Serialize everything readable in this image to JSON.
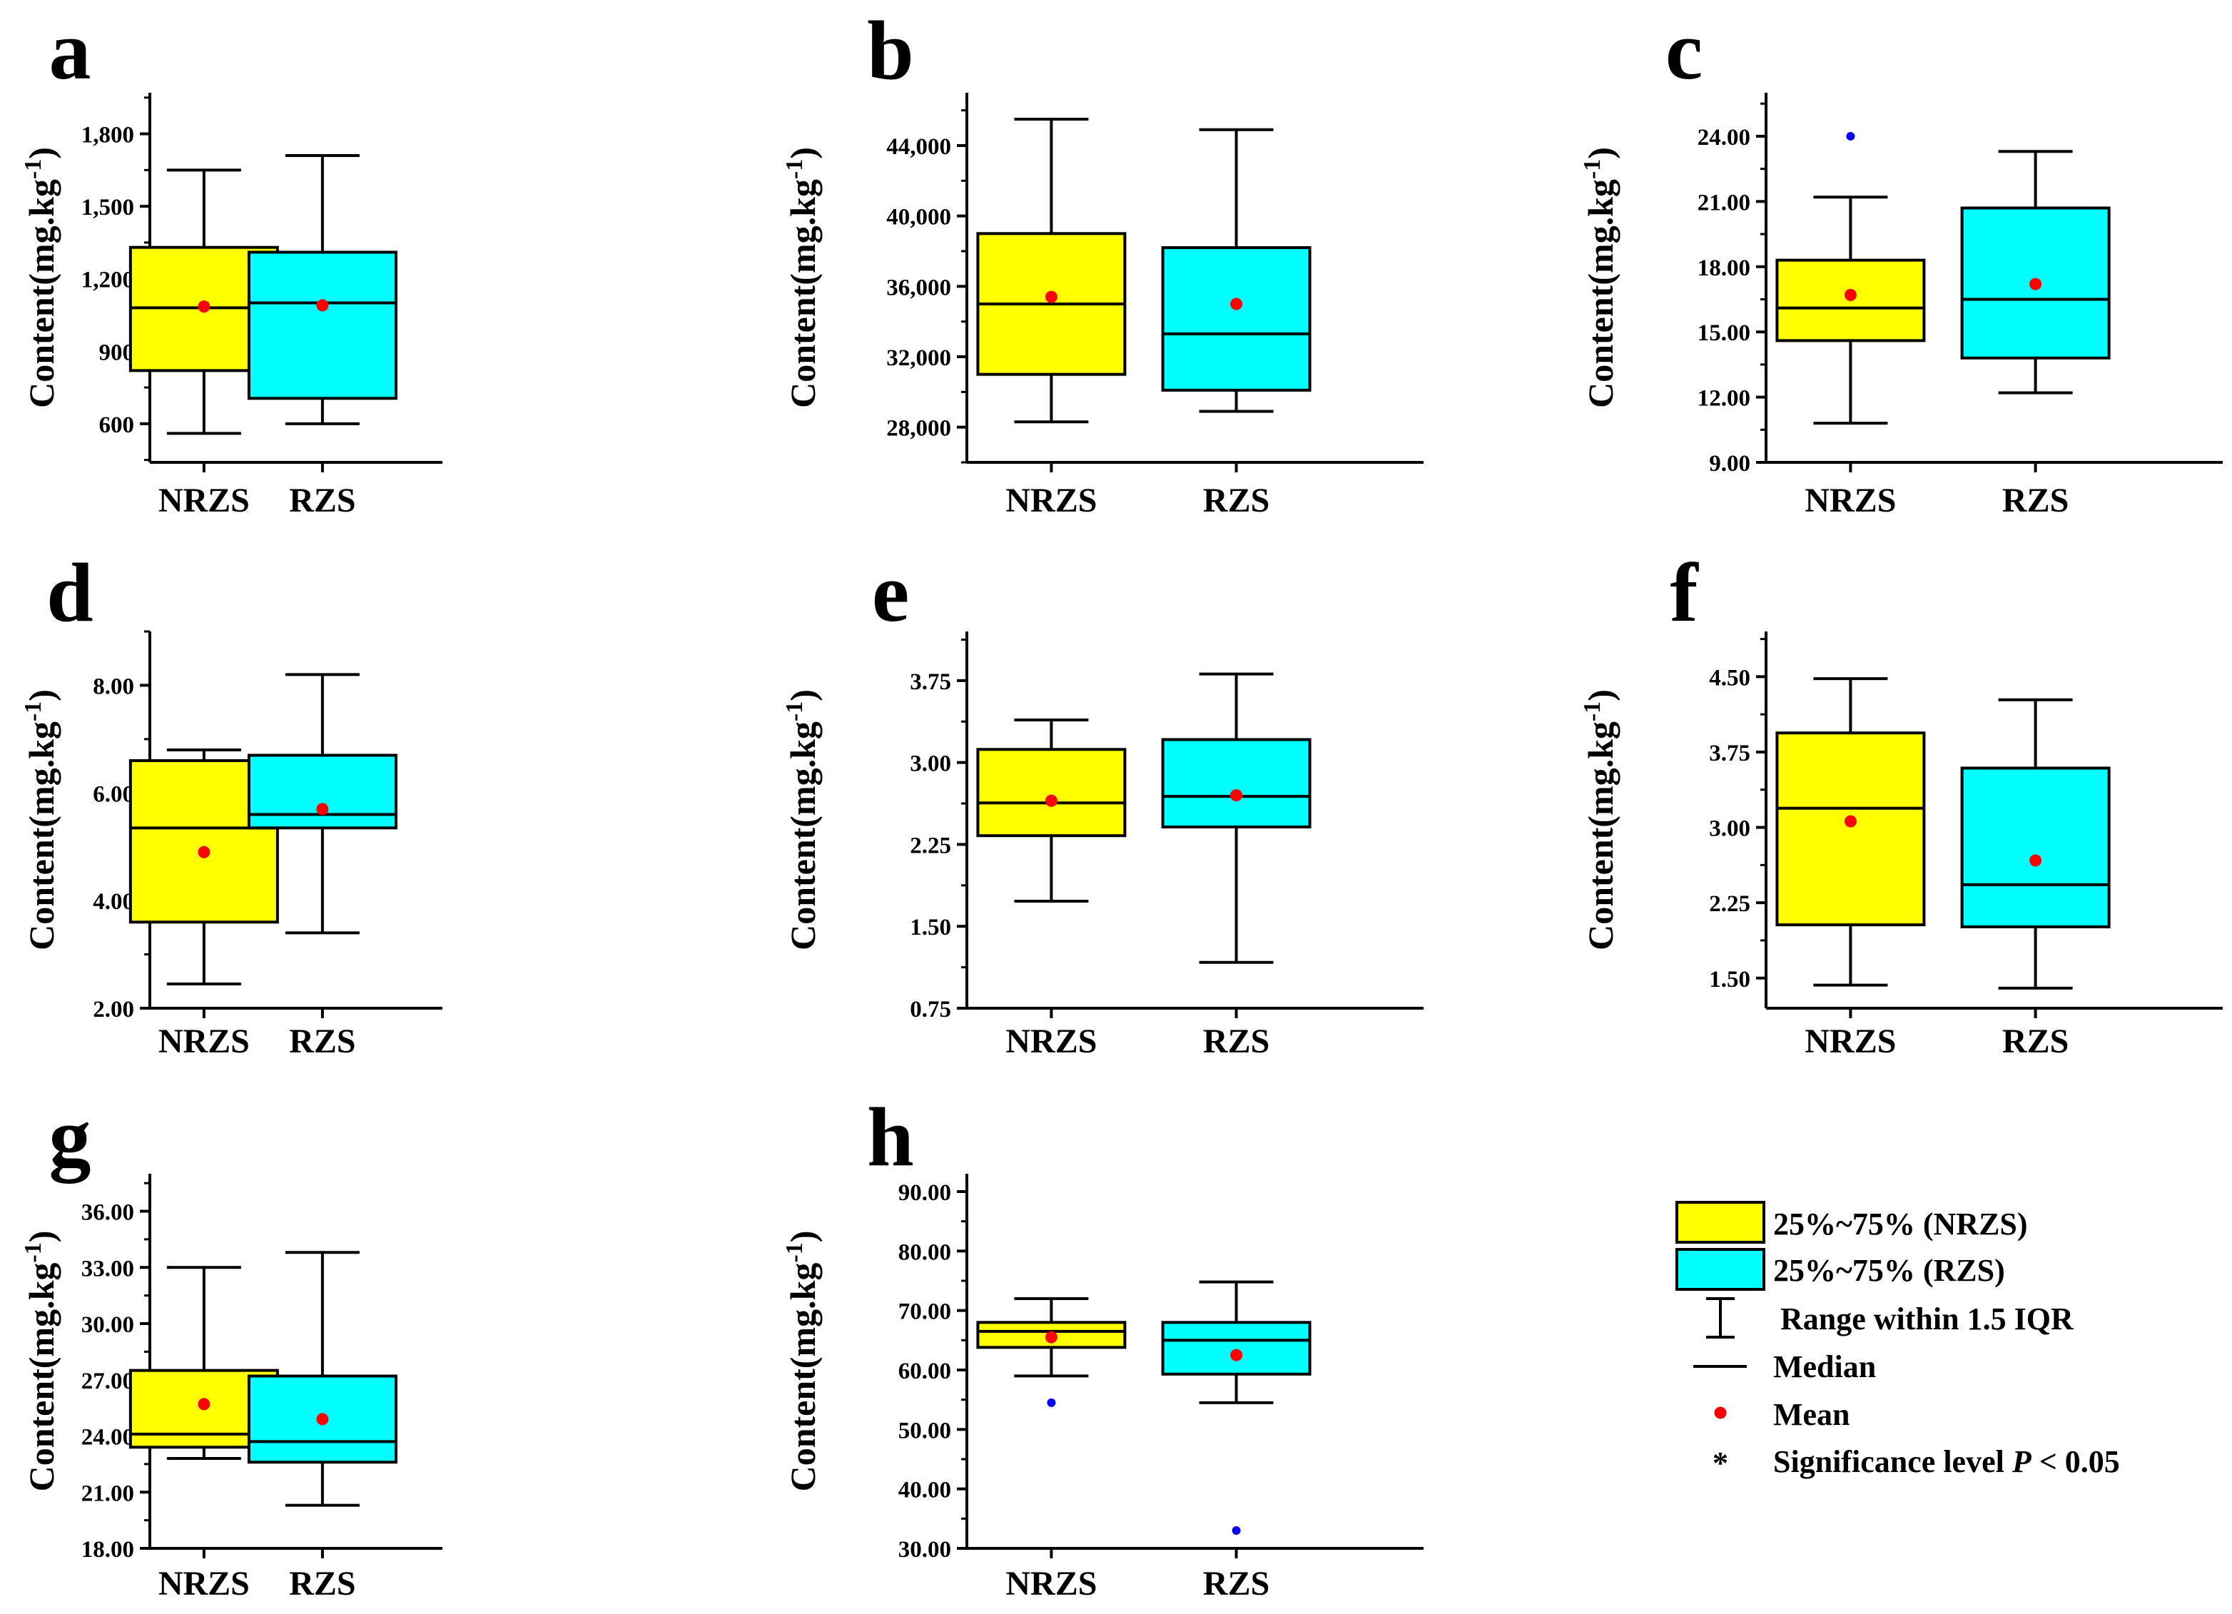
{
  "colors": {
    "nrzs_fill": "#ffff00",
    "rzs_fill": "#00ffff",
    "mean": "#ff0000",
    "outlier": "#0000ff",
    "line": "#000000"
  },
  "chart_data": [
    {
      "panel": "a",
      "type": "box",
      "ylabel": "Content(mg.kg",
      "ylabel_sup": "-1",
      "ylabel_close": ")",
      "ylim": [
        440,
        1970
      ],
      "yticks": [
        600,
        900,
        1200,
        1500,
        1800
      ],
      "ytick_labels": [
        "600",
        "900",
        "1,200",
        "1,500",
        "1,800"
      ],
      "categories": [
        "NRZS",
        "RZS"
      ],
      "boxes": [
        {
          "name": "NRZS",
          "whisker_low": 560,
          "q1": 820,
          "median": 1080,
          "q3": 1330,
          "whisker_high": 1650,
          "mean": 1085,
          "outliers": []
        },
        {
          "name": "RZS",
          "whisker_low": 600,
          "q1": 705,
          "median": 1100,
          "q3": 1310,
          "whisker_high": 1710,
          "mean": 1090,
          "outliers": []
        }
      ]
    },
    {
      "panel": "b",
      "type": "box",
      "ylabel": "Content(mg.kg",
      "ylabel_sup": "-1",
      "ylabel_close": ")",
      "ylim": [
        26000,
        47000
      ],
      "yticks": [
        28000,
        32000,
        36000,
        40000,
        44000
      ],
      "ytick_labels": [
        "28,000",
        "32,000",
        "36,000",
        "40,000",
        "44,000"
      ],
      "categories": [
        "NRZS",
        "RZS"
      ],
      "boxes": [
        {
          "name": "NRZS",
          "whisker_low": 28300,
          "q1": 31000,
          "median": 35000,
          "q3": 39000,
          "whisker_high": 45500,
          "mean": 35400,
          "outliers": []
        },
        {
          "name": "RZS",
          "whisker_low": 28900,
          "q1": 30100,
          "median": 33300,
          "q3": 38200,
          "whisker_high": 44900,
          "mean": 35000,
          "outliers": []
        }
      ]
    },
    {
      "panel": "c",
      "type": "box",
      "ylabel": "Content(mg.kg",
      "ylabel_sup": "-1",
      "ylabel_close": ")",
      "ylim": [
        9.0,
        26.0
      ],
      "yticks": [
        9,
        12,
        15,
        18,
        21,
        24
      ],
      "ytick_labels": [
        "9.00",
        "12.00",
        "15.00",
        "18.00",
        "21.00",
        "24.00"
      ],
      "categories": [
        "NRZS",
        "RZS"
      ],
      "boxes": [
        {
          "name": "NRZS",
          "whisker_low": 10.8,
          "q1": 14.6,
          "median": 16.1,
          "q3": 18.3,
          "whisker_high": 21.2,
          "mean": 16.7,
          "outliers": [
            24.0
          ]
        },
        {
          "name": "RZS",
          "whisker_low": 12.2,
          "q1": 13.8,
          "median": 16.5,
          "q3": 20.7,
          "whisker_high": 23.3,
          "mean": 17.2,
          "outliers": []
        }
      ]
    },
    {
      "panel": "d",
      "type": "box",
      "ylabel": "Content(mg.kg",
      "ylabel_sup": "-1",
      "ylabel_close": ")",
      "ylim": [
        2.0,
        9.0
      ],
      "yticks": [
        2,
        4,
        6,
        8
      ],
      "ytick_labels": [
        "2.00",
        "4.00",
        "6.00",
        "8.00"
      ],
      "categories": [
        "NRZS",
        "RZS"
      ],
      "boxes": [
        {
          "name": "NRZS",
          "whisker_low": 2.45,
          "q1": 3.6,
          "median": 5.35,
          "q3": 6.6,
          "whisker_high": 6.8,
          "mean": 4.9,
          "outliers": []
        },
        {
          "name": "RZS",
          "whisker_low": 3.4,
          "q1": 5.35,
          "median": 5.6,
          "q3": 6.7,
          "whisker_high": 8.2,
          "mean": 5.7,
          "outliers": []
        }
      ]
    },
    {
      "panel": "e",
      "type": "box",
      "ylabel": "Content(mg.kg",
      "ylabel_sup": "-1",
      "ylabel_close": ")",
      "ylim": [
        0.75,
        4.2
      ],
      "yticks": [
        0.75,
        1.5,
        2.25,
        3.0,
        3.75
      ],
      "ytick_labels": [
        "0.75",
        "1.50",
        "2.25",
        "3.00",
        "3.75"
      ],
      "categories": [
        "NRZS",
        "RZS"
      ],
      "boxes": [
        {
          "name": "NRZS",
          "whisker_low": 1.73,
          "q1": 2.33,
          "median": 2.63,
          "q3": 3.12,
          "whisker_high": 3.39,
          "mean": 2.65,
          "outliers": []
        },
        {
          "name": "RZS",
          "whisker_low": 1.17,
          "q1": 2.41,
          "median": 2.69,
          "q3": 3.21,
          "whisker_high": 3.81,
          "mean": 2.7,
          "outliers": []
        }
      ]
    },
    {
      "panel": "f",
      "type": "box",
      "ylabel": "Content(mg.kg",
      "ylabel_sup": "-1",
      "ylabel_close": ")",
      "ylim": [
        1.2,
        4.95
      ],
      "yticks": [
        1.5,
        2.25,
        3.0,
        3.75,
        4.5
      ],
      "ytick_labels": [
        "1.50",
        "2.25",
        "3.00",
        "3.75",
        "4.50"
      ],
      "categories": [
        "NRZS",
        "RZS"
      ],
      "boxes": [
        {
          "name": "NRZS",
          "whisker_low": 1.43,
          "q1": 2.03,
          "median": 3.19,
          "q3": 3.94,
          "whisker_high": 4.48,
          "mean": 3.06,
          "outliers": []
        },
        {
          "name": "RZS",
          "whisker_low": 1.4,
          "q1": 2.01,
          "median": 2.43,
          "q3": 3.59,
          "whisker_high": 4.27,
          "mean": 2.67,
          "outliers": []
        }
      ]
    },
    {
      "panel": "g",
      "type": "box",
      "ylabel": "Content(mg.kg",
      "ylabel_sup": "-1",
      "ylabel_close": ")",
      "ylim": [
        18.0,
        38.0
      ],
      "yticks": [
        18,
        21,
        24,
        27,
        30,
        33,
        36
      ],
      "ytick_labels": [
        "18.00",
        "21.00",
        "24.00",
        "27.00",
        "30.00",
        "33.00",
        "36.00"
      ],
      "categories": [
        "NRZS",
        "RZS"
      ],
      "boxes": [
        {
          "name": "NRZS",
          "whisker_low": 22.8,
          "q1": 23.4,
          "median": 24.1,
          "q3": 27.5,
          "whisker_high": 33.0,
          "mean": 25.7,
          "outliers": []
        },
        {
          "name": "RZS",
          "whisker_low": 20.3,
          "q1": 22.6,
          "median": 23.7,
          "q3": 27.2,
          "whisker_high": 33.8,
          "mean": 24.9,
          "outliers": []
        }
      ]
    },
    {
      "panel": "h",
      "type": "box",
      "ylabel": "Content(mg.kg",
      "ylabel_sup": "-1",
      "ylabel_close": ")",
      "ylim": [
        30.0,
        93.0
      ],
      "yticks": [
        30,
        40,
        50,
        60,
        70,
        80,
        90
      ],
      "ytick_labels": [
        "30.00",
        "40.00",
        "50.00",
        "60.00",
        "70.00",
        "80.00",
        "90.00"
      ],
      "categories": [
        "NRZS",
        "RZS"
      ],
      "boxes": [
        {
          "name": "NRZS",
          "whisker_low": 59.0,
          "q1": 63.8,
          "median": 66.5,
          "q3": 68.0,
          "whisker_high": 72.0,
          "mean": 65.5,
          "outliers": [
            54.5
          ]
        },
        {
          "name": "RZS",
          "whisker_low": 54.5,
          "q1": 59.3,
          "median": 65.0,
          "q3": 68.0,
          "whisker_high": 74.8,
          "mean": 62.5,
          "outliers": [
            33.0
          ]
        }
      ]
    }
  ],
  "legend": {
    "items": [
      {
        "kind": "box-nrzs",
        "label": "25%~75% (NRZS)"
      },
      {
        "kind": "box-rzs",
        "label": "25%~75% (RZS)"
      },
      {
        "kind": "whisker",
        "label": "Range within 1.5 IQR"
      },
      {
        "kind": "median",
        "label": "Median"
      },
      {
        "kind": "mean",
        "label": "Mean"
      },
      {
        "kind": "significance",
        "symbol": "*",
        "label_prefix": "Significance level ",
        "label_italic": "P",
        "label_suffix": " < 0.05"
      }
    ]
  }
}
